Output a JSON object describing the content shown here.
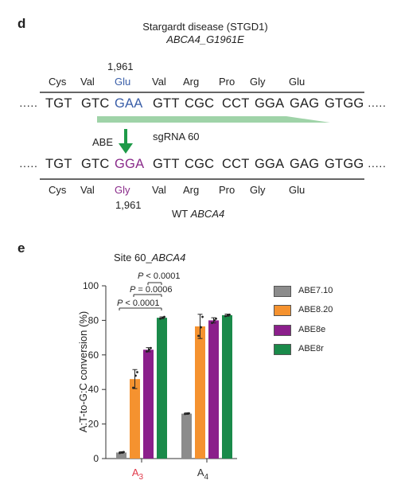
{
  "panel_d": {
    "label": "d",
    "title": "Stargardt disease (STGD1)",
    "subtitle": "ABCA4_G1961E",
    "position_top": "1,961",
    "position_bottom": "1,961",
    "aa_top": [
      "Cys",
      "Val",
      "Glu",
      "Val",
      "Arg",
      "Pro",
      "Gly",
      "Glu"
    ],
    "aa_bottom": [
      "Cys",
      "Val",
      "Gly",
      "Val",
      "Arg",
      "Pro",
      "Gly",
      "Glu"
    ],
    "seq_top": [
      "TGT",
      "GTC",
      "GAA",
      "GTT",
      "CGC",
      "CCT",
      "GGA",
      "GAG",
      "GTGG"
    ],
    "seq_bottom": [
      "TGT",
      "GTC",
      "GGA",
      "GTT",
      "CGC",
      "CCT",
      "GGA",
      "GAG",
      "GTGG"
    ],
    "dots": "·····",
    "sgrna_label": "sgRNA 60",
    "arrow_label": "ABE",
    "wt_prefix": "WT ",
    "wt_gene": "ABCA4",
    "colors": {
      "glu": "#3a5ea8",
      "gly": "#8a2b8a",
      "sgrna": "#9fd3a8",
      "arrow": "#1e9a48"
    }
  },
  "panel_e": {
    "label": "e",
    "title_prefix": "Site 60_",
    "title_gene": "ABCA4",
    "significance": [
      "P < 0.0001",
      "P = 0.0006",
      "P < 0.0001"
    ],
    "x_group_labels": [
      {
        "base": "A",
        "sub": "3",
        "color": "#e0394a"
      },
      {
        "base": "A",
        "sub": "4",
        "color": "#333333"
      }
    ]
  },
  "chart_data": {
    "type": "bar",
    "categories": [
      "A3",
      "A4"
    ],
    "ylabel": "A:T-to-G:C conversion (%)",
    "xlabel": "",
    "ylim": [
      0,
      100
    ],
    "yticks": [
      0,
      20,
      40,
      60,
      80,
      100
    ],
    "series": [
      {
        "name": "ABE7.10",
        "color": "#8c8c8c",
        "values": [
          3.5,
          26
        ],
        "errors": [
          0.4,
          0.4
        ]
      },
      {
        "name": "ABE8.20",
        "color": "#f5922f",
        "values": [
          46,
          76.5
        ],
        "errors": [
          5.5,
          7
        ]
      },
      {
        "name": "ABE8e",
        "color": "#8b1f8b",
        "values": [
          63,
          80
        ],
        "errors": [
          1.2,
          1.5
        ]
      },
      {
        "name": "ABE8r",
        "color": "#1a8a4a",
        "values": [
          81.5,
          83
        ],
        "errors": [
          0.5,
          0.6
        ]
      }
    ],
    "points": [
      [
        [
          3.2,
          3.6,
          3.8
        ],
        [
          25.8,
          26.1,
          26.2
        ]
      ],
      [
        [
          41,
          48,
          50
        ],
        [
          71,
          76,
          82
        ]
      ],
      [
        [
          62,
          63,
          64
        ],
        [
          78.5,
          80,
          81
        ]
      ],
      [
        [
          81,
          81.5,
          82
        ],
        [
          82.5,
          83,
          83.3
        ]
      ]
    ]
  }
}
